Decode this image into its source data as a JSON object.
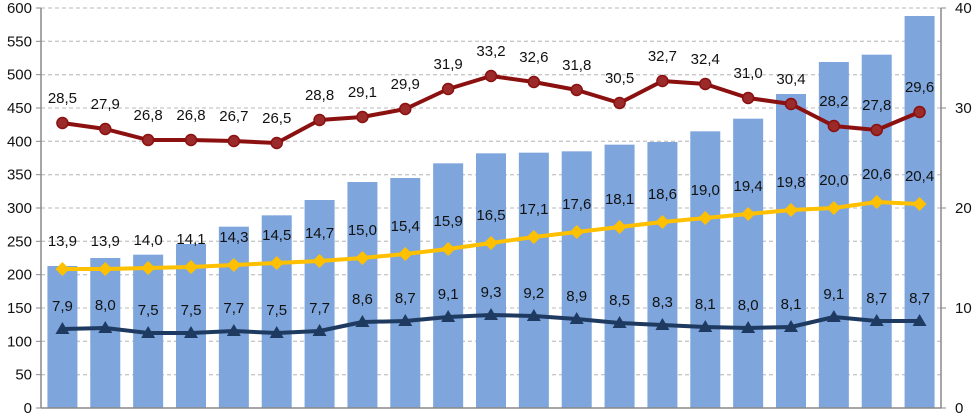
{
  "chart_data": {
    "type": "bar+line",
    "title": "",
    "grid": true,
    "left_axis": {
      "min": 0,
      "max": 600,
      "step": 50,
      "ticks": [
        "0",
        "50",
        "100",
        "150",
        "200",
        "250",
        "300",
        "350",
        "400",
        "450",
        "500",
        "550",
        "600"
      ]
    },
    "right_axis": {
      "min": 0,
      "max": 40,
      "step": 10,
      "ticks": [
        "0",
        "10",
        "20",
        "30",
        "40"
      ]
    },
    "categories_count": 21,
    "bars": {
      "name": "bars",
      "axis": "left",
      "color": "#7ea6dd",
      "values": [
        213,
        225,
        230,
        246,
        272,
        289,
        312,
        339,
        345,
        367,
        382,
        383,
        385,
        395,
        399,
        415,
        434,
        471,
        519,
        530,
        588
      ]
    },
    "series": [
      {
        "name": "red-line",
        "axis": "right",
        "color": "#8b1010",
        "marker": "circle",
        "values": [
          28.5,
          27.9,
          26.8,
          26.8,
          26.7,
          26.5,
          28.8,
          29.1,
          29.9,
          31.9,
          33.2,
          32.6,
          31.8,
          30.5,
          32.7,
          32.4,
          31.0,
          30.4,
          28.2,
          27.8,
          29.6
        ],
        "labels": [
          "28,5",
          "27,9",
          "26,8",
          "26,8",
          "26,7",
          "26,5",
          "28,8",
          "29,1",
          "29,9",
          "31,9",
          "33,2",
          "32,6",
          "31,8",
          "30,5",
          "32,7",
          "32,4",
          "31,0",
          "30,4",
          "28,2",
          "27,8",
          "29,6"
        ]
      },
      {
        "name": "yellow-line",
        "axis": "right",
        "color": "#ffc000",
        "marker": "diamond",
        "values": [
          13.9,
          13.9,
          14.0,
          14.1,
          14.3,
          14.5,
          14.7,
          15.0,
          15.4,
          15.9,
          16.5,
          17.1,
          17.6,
          18.1,
          18.6,
          19.0,
          19.4,
          19.8,
          20.0,
          20.6,
          20.4
        ],
        "labels": [
          "13,9",
          "13,9",
          "14,0",
          "14,1",
          "14,3",
          "14,5",
          "14,7",
          "15,0",
          "15,4",
          "15,9",
          "16,5",
          "17,1",
          "17,6",
          "18,1",
          "18,6",
          "19,0",
          "19,4",
          "19,8",
          "20,0",
          "20,6",
          "20,4"
        ]
      },
      {
        "name": "navy-line",
        "axis": "right",
        "color": "#1f3a60",
        "marker": "triangle",
        "values": [
          7.9,
          8.0,
          7.5,
          7.5,
          7.7,
          7.5,
          7.7,
          8.6,
          8.7,
          9.1,
          9.3,
          9.2,
          8.9,
          8.5,
          8.3,
          8.1,
          8.0,
          8.1,
          9.1,
          8.7,
          8.7
        ],
        "labels": [
          "7,9",
          "8,0",
          "7,5",
          "7,5",
          "7,7",
          "7,5",
          "7,7",
          "8,6",
          "8,7",
          "9,1",
          "9,3",
          "9,2",
          "8,9",
          "8,5",
          "8,3",
          "8,1",
          "8,0",
          "8,1",
          "9,1",
          "8,7",
          "8,7"
        ]
      }
    ]
  }
}
